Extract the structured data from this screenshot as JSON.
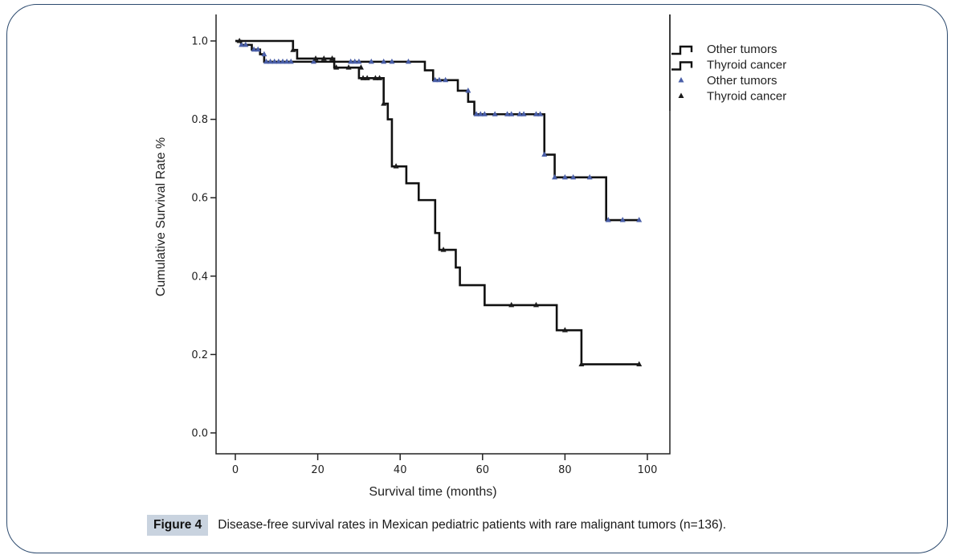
{
  "caption": {
    "label": "Figure 4",
    "text": "Disease-free survival rates in Mexican pediatric patients with rare malignant tumors (n=136)."
  },
  "chart_data": {
    "type": "line",
    "subtype": "kaplan-meier-step",
    "title": "",
    "xlabel": "Survival time (months)",
    "ylabel": "Cumulative Survival Rate %",
    "xlim": [
      0,
      100
    ],
    "ylim": [
      0,
      1.0
    ],
    "xticks": [
      0,
      20,
      40,
      60,
      80,
      100
    ],
    "xtick_labels": [
      "0",
      "20",
      "40",
      "60",
      "80",
      "100"
    ],
    "yticks": [
      0.0,
      0.2,
      0.4,
      0.6,
      0.8,
      1.0
    ],
    "ytick_labels": [
      "0.0",
      "0.2",
      "0.4",
      "0.6",
      "0.8",
      "1.0"
    ],
    "grid": false,
    "legend_position": "top-right-outside",
    "legend": [
      {
        "label": "Other tumors",
        "kind": "line"
      },
      {
        "label": "Thyroid cancer",
        "kind": "line"
      },
      {
        "label": "Other tumors",
        "kind": "censor-marker",
        "color": "#4a5fa8"
      },
      {
        "label": "Thyroid cancer",
        "kind": "censor-marker",
        "color": "#1a1a1a"
      }
    ],
    "series": [
      {
        "name": "Other tumors",
        "line_color": "#111111",
        "marker_color": "#4a5fa8",
        "steps": [
          [
            0,
            1.0
          ],
          [
            1.4,
            0.99
          ],
          [
            4,
            0.978
          ],
          [
            6,
            0.966
          ],
          [
            7,
            0.947
          ],
          [
            46,
            0.925
          ],
          [
            48,
            0.9
          ],
          [
            54,
            0.873
          ],
          [
            56.5,
            0.845
          ],
          [
            58,
            0.813
          ],
          [
            75,
            0.71
          ],
          [
            77.5,
            0.652
          ],
          [
            90,
            0.543
          ],
          [
            98,
            0.543
          ]
        ],
        "censored": [
          [
            1.5,
            0.99
          ],
          [
            2.5,
            0.99
          ],
          [
            4.5,
            0.978
          ],
          [
            5.5,
            0.978
          ],
          [
            7,
            0.966
          ],
          [
            7.5,
            0.947
          ],
          [
            8.5,
            0.947
          ],
          [
            9.5,
            0.947
          ],
          [
            10.5,
            0.947
          ],
          [
            11.5,
            0.947
          ],
          [
            12.5,
            0.947
          ],
          [
            13.5,
            0.947
          ],
          [
            19,
            0.947
          ],
          [
            28,
            0.947
          ],
          [
            29,
            0.947
          ],
          [
            30,
            0.947
          ],
          [
            33,
            0.947
          ],
          [
            36,
            0.947
          ],
          [
            38,
            0.947
          ],
          [
            42,
            0.947
          ],
          [
            48.5,
            0.9
          ],
          [
            49.5,
            0.9
          ],
          [
            51,
            0.9
          ],
          [
            56.5,
            0.873
          ],
          [
            58.5,
            0.813
          ],
          [
            59.5,
            0.813
          ],
          [
            60.5,
            0.813
          ],
          [
            63,
            0.813
          ],
          [
            66,
            0.813
          ],
          [
            67,
            0.813
          ],
          [
            69,
            0.813
          ],
          [
            70,
            0.813
          ],
          [
            73,
            0.813
          ],
          [
            74,
            0.813
          ],
          [
            75,
            0.71
          ],
          [
            77.5,
            0.652
          ],
          [
            80,
            0.652
          ],
          [
            82,
            0.652
          ],
          [
            86,
            0.652
          ],
          [
            90.5,
            0.543
          ],
          [
            94,
            0.543
          ],
          [
            98,
            0.543
          ]
        ]
      },
      {
        "name": "Thyroid cancer",
        "line_color": "#111111",
        "marker_color": "#1a1a1a",
        "steps": [
          [
            0,
            1.0
          ],
          [
            14,
            0.977
          ],
          [
            15,
            0.955
          ],
          [
            24,
            0.932
          ],
          [
            30,
            0.905
          ],
          [
            36,
            0.84
          ],
          [
            37,
            0.8
          ],
          [
            38,
            0.68
          ],
          [
            41.5,
            0.637
          ],
          [
            44.5,
            0.594
          ],
          [
            48.5,
            0.51
          ],
          [
            49.5,
            0.467
          ],
          [
            53.5,
            0.422
          ],
          [
            54.5,
            0.377
          ],
          [
            60.5,
            0.326
          ],
          [
            78,
            0.262
          ],
          [
            84,
            0.175
          ],
          [
            98,
            0.175
          ]
        ],
        "censored": [
          [
            1,
            1.0
          ],
          [
            14,
            0.977
          ],
          [
            19.5,
            0.955
          ],
          [
            21.5,
            0.955
          ],
          [
            23.5,
            0.955
          ],
          [
            24.5,
            0.932
          ],
          [
            27.5,
            0.932
          ],
          [
            30.5,
            0.932
          ],
          [
            31,
            0.905
          ],
          [
            32,
            0.905
          ],
          [
            34,
            0.905
          ],
          [
            35,
            0.905
          ],
          [
            36,
            0.84
          ],
          [
            39,
            0.68
          ],
          [
            50.5,
            0.467
          ],
          [
            67,
            0.326
          ],
          [
            73,
            0.326
          ],
          [
            80,
            0.262
          ],
          [
            84,
            0.175
          ],
          [
            98,
            0.175
          ]
        ]
      }
    ]
  }
}
